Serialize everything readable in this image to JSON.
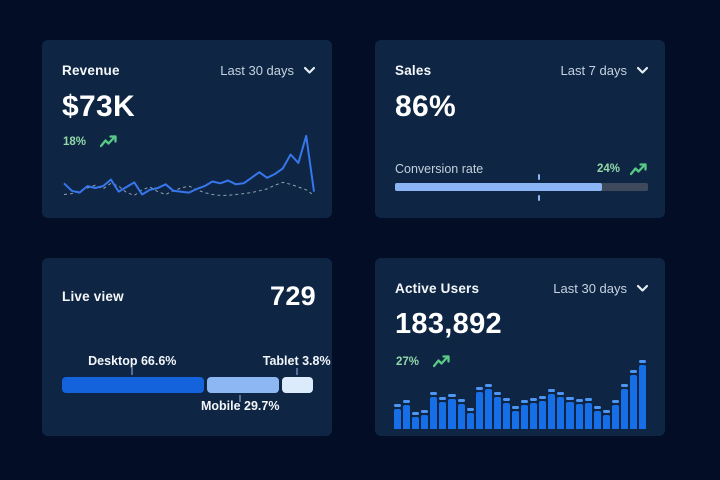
{
  "theme": {
    "page_bg": "#030d26",
    "card_bg": "#0e2643",
    "text_primary": "#ffffff",
    "text_secondary": "#c6d2e0",
    "green_text": "#93d8a9",
    "green_icon": "#58c986",
    "line_current": "#3776ec",
    "line_previous": "#93a0b0",
    "bar_body": "#176fe8",
    "bar_cap": "#4d96f5",
    "progress_fill": "#8ab4f3",
    "progress_track": "#3e4a5c",
    "connector": "#5a6b9a"
  },
  "cards": {
    "revenue": {
      "title": "Revenue",
      "period": "Last 30 days",
      "value": "$73K",
      "change": "18%"
    },
    "sales": {
      "title": "Sales",
      "period": "Last 7 days",
      "value": "86%",
      "metric_label": "Conversion rate",
      "change": "24%"
    },
    "live_view": {
      "title": "Live view",
      "value": "729"
    },
    "active_users": {
      "title": "Active Users",
      "period": "Last 30 days",
      "value": "183,892",
      "change": "27%"
    }
  },
  "chart_data": [
    {
      "id": "revenue-trend",
      "card": "Revenue",
      "type": "line",
      "axes": "hidden",
      "legend": "none",
      "unit": "relative-0-70",
      "series": [
        {
          "name": "current",
          "style": "solid",
          "values": [
            19,
            11,
            9,
            16,
            14,
            16,
            23,
            10,
            15,
            20,
            7,
            12,
            14,
            18,
            11,
            10,
            9,
            13,
            16,
            21,
            19,
            22,
            18,
            19,
            25,
            31,
            25,
            29,
            35,
            50,
            41,
            70,
            10
          ]
        },
        {
          "name": "previous",
          "style": "dashed",
          "values": [
            7,
            8,
            11,
            14,
            17,
            13,
            19,
            16,
            9,
            6,
            12,
            15,
            10,
            7,
            11,
            14,
            16,
            12,
            9,
            7,
            6,
            6,
            7,
            8,
            9,
            11,
            13,
            17,
            20,
            18,
            15,
            12,
            6
          ]
        }
      ]
    },
    {
      "id": "sales-progress",
      "card": "Sales",
      "type": "progress-bar",
      "value_pct": 86,
      "fill_pct": 82,
      "marker_pct": 57
    },
    {
      "id": "device-split",
      "card": "Live view",
      "type": "stacked-bar",
      "segments": [
        {
          "name": "Desktop",
          "label": "Desktop 66.6%",
          "pct": 66.6,
          "width_pct": 56.5,
          "label_pos_pct": 28,
          "label_side": "top",
          "color": "#1563dc"
        },
        {
          "name": "Mobile",
          "label": "Mobile 29.7%",
          "pct": 29.7,
          "width_pct": 28.5,
          "label_pos_pct": 71,
          "label_side": "bottom",
          "color": "#8cb7f3"
        },
        {
          "name": "Tablet",
          "label": "Tablet 3.8%",
          "pct": 3.8,
          "width_pct": 12.5,
          "label_pos_pct": 93.5,
          "label_side": "top",
          "color": "#dcebfc"
        }
      ]
    },
    {
      "id": "active-users-bars",
      "card": "Active Users",
      "type": "bar",
      "axes": "hidden",
      "max": 70,
      "values": [
        25,
        29,
        17,
        19,
        37,
        32,
        35,
        30,
        21,
        42,
        45,
        37,
        31,
        23,
        29,
        31,
        33,
        40,
        37,
        32,
        30,
        31,
        23,
        19,
        29,
        45,
        59,
        69
      ]
    }
  ]
}
